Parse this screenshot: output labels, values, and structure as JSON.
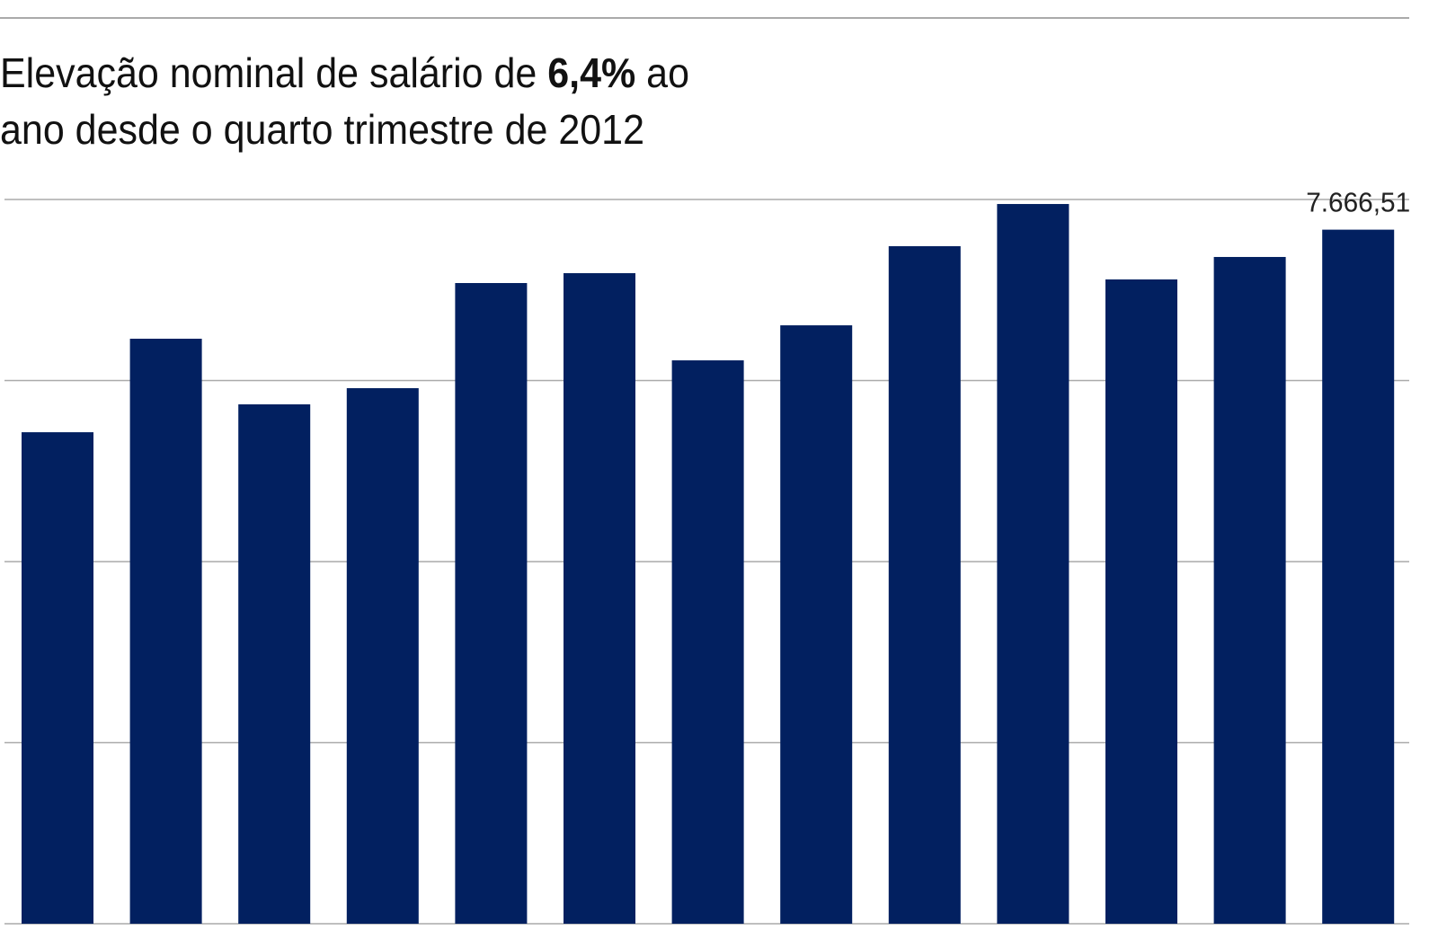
{
  "chart_data": {
    "type": "bar",
    "title": [
      [
        {
          "text": "Elevação nominal de salário de "
        },
        {
          "text": "6,4%",
          "bold": true
        },
        {
          "text": " ao"
        }
      ],
      [
        {
          "text": "ano desde o quarto trimestre de 2012"
        }
      ]
    ],
    "categories": [
      null,
      null,
      null,
      null,
      null,
      null,
      null,
      null,
      null,
      null,
      null,
      null,
      null
    ],
    "values": [
      5429,
      6462,
      5737,
      5916,
      7077,
      7186,
      6223,
      6610,
      7484,
      7950,
      7117,
      7365,
      7666.51
    ],
    "value_labels": [
      null,
      null,
      null,
      null,
      null,
      null,
      null,
      null,
      null,
      null,
      null,
      null,
      "7.666,51"
    ],
    "color": "#022060",
    "ylim": [
      0,
      8000
    ],
    "gridlines": [
      0,
      2000,
      4000,
      6000,
      8000
    ],
    "grid": true
  }
}
